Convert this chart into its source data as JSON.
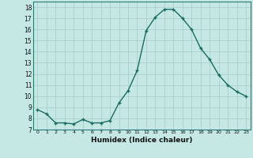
{
  "x": [
    0,
    1,
    2,
    3,
    4,
    5,
    6,
    7,
    8,
    9,
    10,
    11,
    12,
    13,
    14,
    15,
    16,
    17,
    18,
    19,
    20,
    21,
    22,
    23
  ],
  "y": [
    8.8,
    8.4,
    7.6,
    7.6,
    7.5,
    7.9,
    7.6,
    7.6,
    7.8,
    9.4,
    10.5,
    12.3,
    15.9,
    17.1,
    17.8,
    17.8,
    17.0,
    16.0,
    14.3,
    13.3,
    11.9,
    11.0,
    10.4,
    10.0
  ],
  "bg_color": "#c5e8e5",
  "grid_color": "#aacfcc",
  "line_color": "#1a6b60",
  "marker_color": "#1a6b60",
  "xlabel": "Humidex (Indice chaleur)",
  "ylim": [
    7,
    18.5
  ],
  "xlim": [
    -0.5,
    23.5
  ],
  "yticks": [
    7,
    8,
    9,
    10,
    11,
    12,
    13,
    14,
    15,
    16,
    17,
    18
  ],
  "xticks": [
    0,
    1,
    2,
    3,
    4,
    5,
    6,
    7,
    8,
    9,
    10,
    11,
    12,
    13,
    14,
    15,
    16,
    17,
    18,
    19,
    20,
    21,
    22,
    23
  ],
  "xtick_labels": [
    "0",
    "1",
    "2",
    "3",
    "4",
    "5",
    "6",
    "7",
    "8",
    "9",
    "10",
    "11",
    "12",
    "13",
    "14",
    "15",
    "16",
    "17",
    "18",
    "19",
    "20",
    "21",
    "22",
    "23"
  ]
}
